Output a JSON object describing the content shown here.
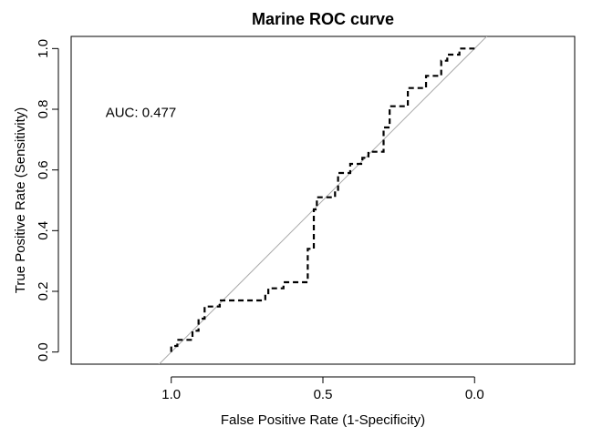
{
  "chart_data": {
    "type": "line",
    "title": "Marine ROC curve",
    "xlabel": "False Positive Rate (1-Specificity)",
    "ylabel": "True Positive Rate (Sensitivity)",
    "x_reversed": true,
    "xlim": [
      1.33,
      -0.33
    ],
    "ylim": [
      -0.04,
      1.04
    ],
    "x_ticks": [
      {
        "value": 1.0,
        "label": "1.0"
      },
      {
        "value": 0.5,
        "label": "0.5"
      },
      {
        "value": 0.0,
        "label": "0.0"
      }
    ],
    "y_ticks": [
      {
        "value": 0.0,
        "label": "0.0"
      },
      {
        "value": 0.2,
        "label": "0.2"
      },
      {
        "value": 0.4,
        "label": "0.4"
      },
      {
        "value": 0.6,
        "label": "0.6"
      },
      {
        "value": 0.8,
        "label": "0.8"
      },
      {
        "value": 1.0,
        "label": "1.0"
      }
    ],
    "grid": false,
    "reference_line": {
      "intercept": 1,
      "slope": 1,
      "color": "#aaaaaa"
    },
    "annotation": {
      "text": "AUC: 0.477",
      "x": 1.1,
      "y": 0.79
    },
    "series": [
      {
        "color": "#000000",
        "dash": true,
        "points": [
          [
            1.0,
            0.0
          ],
          [
            1.0,
            0.02
          ],
          [
            0.98,
            0.02
          ],
          [
            0.98,
            0.04
          ],
          [
            0.93,
            0.04
          ],
          [
            0.93,
            0.07
          ],
          [
            0.91,
            0.07
          ],
          [
            0.91,
            0.11
          ],
          [
            0.89,
            0.11
          ],
          [
            0.89,
            0.15
          ],
          [
            0.84,
            0.15
          ],
          [
            0.84,
            0.17
          ],
          [
            0.69,
            0.17
          ],
          [
            0.69,
            0.19
          ],
          [
            0.68,
            0.19
          ],
          [
            0.68,
            0.21
          ],
          [
            0.63,
            0.21
          ],
          [
            0.63,
            0.23
          ],
          [
            0.55,
            0.23
          ],
          [
            0.55,
            0.34
          ],
          [
            0.53,
            0.34
          ],
          [
            0.53,
            0.47
          ],
          [
            0.52,
            0.47
          ],
          [
            0.52,
            0.51
          ],
          [
            0.46,
            0.51
          ],
          [
            0.46,
            0.53
          ],
          [
            0.45,
            0.53
          ],
          [
            0.45,
            0.59
          ],
          [
            0.41,
            0.59
          ],
          [
            0.41,
            0.62
          ],
          [
            0.37,
            0.62
          ],
          [
            0.37,
            0.64
          ],
          [
            0.35,
            0.64
          ],
          [
            0.35,
            0.66
          ],
          [
            0.3,
            0.66
          ],
          [
            0.3,
            0.74
          ],
          [
            0.28,
            0.74
          ],
          [
            0.28,
            0.81
          ],
          [
            0.22,
            0.81
          ],
          [
            0.22,
            0.87
          ],
          [
            0.16,
            0.87
          ],
          [
            0.16,
            0.91
          ],
          [
            0.11,
            0.91
          ],
          [
            0.11,
            0.96
          ],
          [
            0.09,
            0.96
          ],
          [
            0.09,
            0.98
          ],
          [
            0.05,
            0.98
          ],
          [
            0.05,
            1.0
          ],
          [
            0.0,
            1.0
          ]
        ]
      }
    ]
  }
}
